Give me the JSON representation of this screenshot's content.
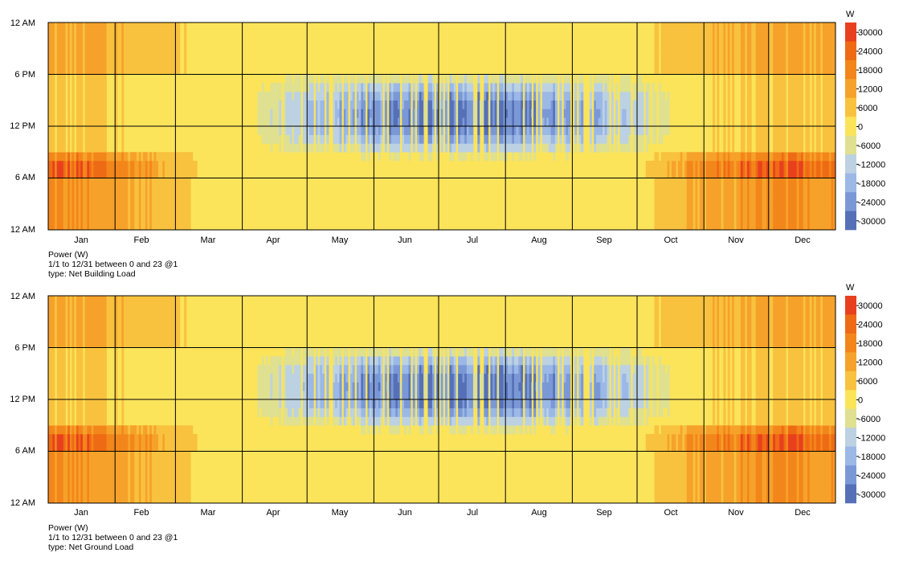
{
  "chart_data": [
    {
      "type": "heatmap",
      "caption": {
        "line1": "Power (W)",
        "line2": "1/1 to 12/31 between 0 and 23 @1",
        "line3": "type: Net Building Load"
      },
      "x_labels": [
        "Jan",
        "Feb",
        "Mar",
        "Apr",
        "May",
        "Jun",
        "Jul",
        "Aug",
        "Sep",
        "Oct",
        "Nov",
        "Dec"
      ],
      "y_labels": [
        "12 AM",
        "6 PM",
        "12 PM",
        "6 AM",
        "12 AM"
      ],
      "x_range": [
        "1/1",
        "12/31"
      ],
      "y_range_hours": [
        0,
        23
      ],
      "colorbar": {
        "unit": "W",
        "min": -30000,
        "max": 30000,
        "ticks": [
          30000,
          24000,
          18000,
          12000,
          6000,
          0,
          -6000,
          -12000,
          -18000,
          -24000,
          -30000
        ],
        "colors": [
          "#e8401e",
          "#ef6a14",
          "#f3861a",
          "#f6a22a",
          "#f9c23e",
          "#fbe45a",
          "#dfe090",
          "#bcd2e2",
          "#9bb8e6",
          "#7b98d6",
          "#5670b8"
        ]
      },
      "pattern": {
        "winter_months": "Jan, Feb, Mar, Nov, Dec: positive load, 6000-30000 W, peak around 6-9 AM and nighttime",
        "summer_months": "May-Sep: negative load, down to about -30000 W, between about 7 AM and 6 PM",
        "other": "near 0 W (yellow)"
      },
      "grid": true
    },
    {
      "type": "heatmap",
      "caption": {
        "line1": "Power (W)",
        "line2": "1/1 to 12/31 between 0 and 23 @1",
        "line3": "type: Net Ground Load"
      },
      "x_labels": [
        "Jan",
        "Feb",
        "Mar",
        "Apr",
        "May",
        "Jun",
        "Jul",
        "Aug",
        "Sep",
        "Oct",
        "Nov",
        "Dec"
      ],
      "y_labels": [
        "12 AM",
        "6 PM",
        "12 PM",
        "6 AM",
        "12 AM"
      ],
      "x_range": [
        "1/1",
        "12/31"
      ],
      "y_range_hours": [
        0,
        23
      ],
      "colorbar": {
        "unit": "W",
        "min": -30000,
        "max": 30000,
        "ticks": [
          30000,
          24000,
          18000,
          12000,
          6000,
          0,
          -6000,
          -12000,
          -18000,
          -24000,
          -30000
        ],
        "colors": [
          "#e8401e",
          "#ef6a14",
          "#f3861a",
          "#f6a22a",
          "#f9c23e",
          "#fbe45a",
          "#dfe090",
          "#bcd2e2",
          "#9bb8e6",
          "#7b98d6",
          "#5670b8"
        ]
      },
      "pattern": {
        "winter_months": "Jan, Feb, Mar, Nov, Dec: positive load, 6000-30000 W, peak around 6-9 AM and nighttime",
        "summer_months": "May-Sep: negative load, down to about -30000 W, between about 7 AM and 6 PM",
        "other": "near 0 W (yellow)"
      },
      "grid": true
    }
  ]
}
